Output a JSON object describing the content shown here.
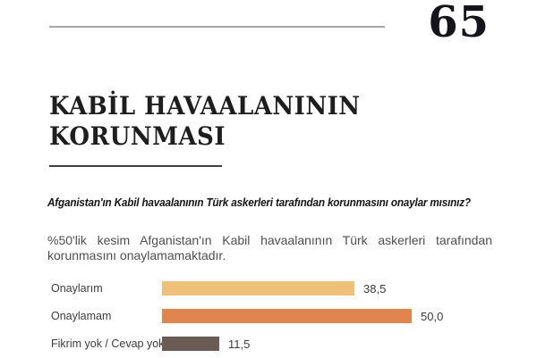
{
  "page": {
    "number": "65"
  },
  "title": {
    "line1": "KABİL HAVAALANININ",
    "line2": "KORUNMASI"
  },
  "question": "Afganistan'ın Kabil havaalanının Türk askerleri tarafından korunmasını onaylar mısınız?",
  "summary": "%50'lik kesim Afganistan'ın Kabil havaalanının Türk askerleri tarafından korunmasını onaylamamaktadır.",
  "chart_data": {
    "type": "bar",
    "orientation": "horizontal",
    "categories": [
      "Onaylarım",
      "Onaylamam",
      "Fikrim yok / Cevap yok"
    ],
    "values": [
      38.5,
      50.0,
      11.5
    ],
    "value_labels": [
      "38,5",
      "50,0",
      "11,5"
    ],
    "bar_colors": [
      "#efc077",
      "#df854d",
      "#6a5c54"
    ],
    "xlim": [
      0,
      100
    ],
    "grid": false,
    "legend": false,
    "value_label_position": "right-of-bar"
  }
}
